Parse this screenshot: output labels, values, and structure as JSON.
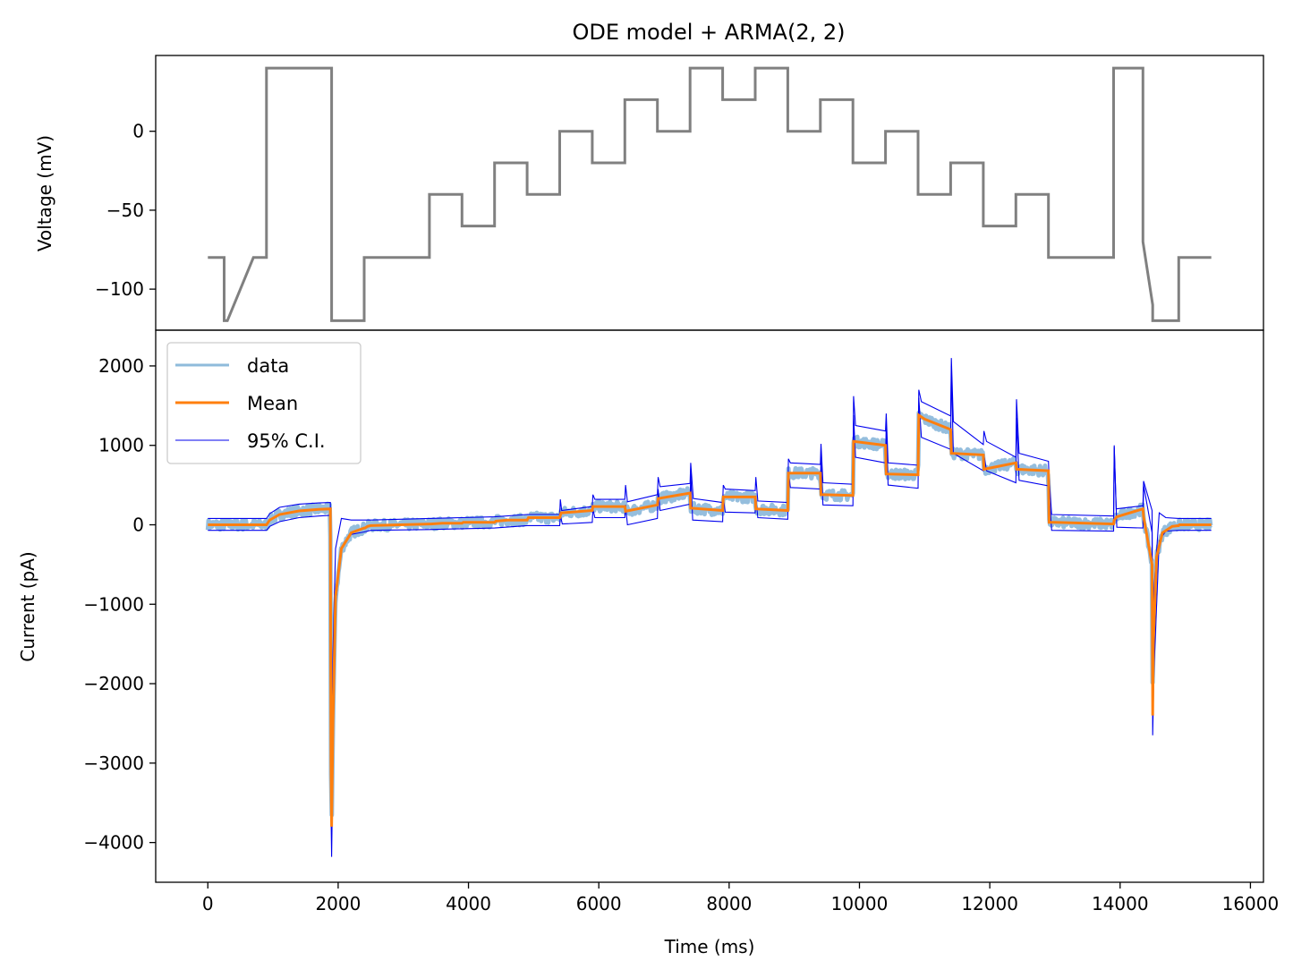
{
  "chart_data": [
    {
      "type": "line",
      "title": "ODE model + ARMA(2, 2)",
      "xlabel": "",
      "ylabel": "Voltage (mV)",
      "xlim": [
        -800,
        16200
      ],
      "ylim": [
        -126,
        48
      ],
      "yticks": [
        0,
        -50,
        -100
      ],
      "ytick_labels": [
        "0",
        "−50",
        "−100"
      ],
      "grid": false,
      "series": [
        {
          "color": "#808080",
          "x": [
            0,
            250,
            250,
            300,
            700,
            900,
            900,
            1900,
            1900,
            2400,
            2400,
            3400,
            3400,
            3900,
            3900,
            4400,
            4400,
            4900,
            4900,
            5400,
            5400,
            5900,
            5900,
            6400,
            6400,
            6900,
            6900,
            7400,
            7400,
            7900,
            7900,
            8400,
            8400,
            8900,
            8900,
            9400,
            9400,
            9900,
            9900,
            10400,
            10400,
            10900,
            10900,
            11400,
            11400,
            11900,
            11900,
            12400,
            12400,
            12900,
            12900,
            13900,
            13900,
            14350,
            14350,
            14500,
            14500,
            14900,
            14900,
            15400
          ],
          "y": [
            -80,
            -80,
            -120,
            -120,
            -80,
            -80,
            40,
            40,
            -120,
            -120,
            -80,
            -80,
            -40,
            -40,
            -60,
            -60,
            -20,
            -20,
            -40,
            -40,
            0,
            0,
            -20,
            -20,
            20,
            20,
            0,
            0,
            40,
            40,
            20,
            20,
            40,
            40,
            0,
            0,
            20,
            20,
            -20,
            -20,
            0,
            0,
            -40,
            -40,
            -20,
            -20,
            -60,
            -60,
            -40,
            -40,
            -80,
            -80,
            40,
            40,
            -70,
            -110,
            -120,
            -120,
            -80,
            -80
          ]
        }
      ]
    },
    {
      "type": "line",
      "title": "",
      "xlabel": "Time (ms)",
      "ylabel": "Current (pA)",
      "xlim": [
        -800,
        16200
      ],
      "ylim": [
        -4500,
        2450
      ],
      "xticks": [
        0,
        2000,
        4000,
        6000,
        8000,
        10000,
        12000,
        14000,
        16000
      ],
      "xtick_labels": [
        "0",
        "2000",
        "4000",
        "6000",
        "8000",
        "10000",
        "12000",
        "14000",
        "16000"
      ],
      "yticks": [
        2000,
        1000,
        0,
        -1000,
        -2000,
        -3000,
        -4000
      ],
      "ytick_labels": [
        "2000",
        "1000",
        "0",
        "−1000",
        "−2000",
        "−3000",
        "−4000"
      ],
      "legend": "upper-left",
      "grid": false,
      "series": [
        {
          "name": "data",
          "color": "#8fbbdb"
        },
        {
          "name": "Mean",
          "color": "#ff7f0e"
        },
        {
          "name": "95% C.I.",
          "color": "#0000ee"
        }
      ],
      "mean": {
        "x": [
          0,
          900,
          950,
          1100,
          1400,
          1700,
          1880,
          1890,
          1900,
          1920,
          1960,
          2050,
          2200,
          2400,
          2410,
          2450,
          2500,
          3400,
          3420,
          3600,
          3900,
          3920,
          4000,
          4400,
          4420,
          4600,
          4900,
          4920,
          5000,
          5400,
          5420,
          5900,
          5910,
          6400,
          6410,
          6900,
          6910,
          7400,
          7410,
          7900,
          7910,
          8400,
          8410,
          8900,
          8910,
          9400,
          9410,
          9900,
          9910,
          10400,
          10410,
          10900,
          10910,
          11000,
          11400,
          11410,
          11900,
          11910,
          12400,
          12410,
          12900,
          12910,
          13000,
          13900,
          13910,
          13950,
          14350,
          14360,
          14490,
          14500,
          14510,
          14560,
          14650,
          14800,
          14900,
          14910,
          15400
        ],
        "y": [
          0,
          0,
          60,
          130,
          175,
          195,
          200,
          -3000,
          -3800,
          -2500,
          -900,
          -300,
          -100,
          -40,
          -40,
          -20,
          -10,
          10,
          10,
          20,
          20,
          30,
          30,
          30,
          45,
          60,
          60,
          90,
          90,
          90,
          150,
          180,
          230,
          230,
          170,
          250,
          330,
          400,
          210,
          180,
          350,
          350,
          200,
          180,
          650,
          650,
          380,
          370,
          1050,
          1000,
          640,
          630,
          1380,
          1330,
          1200,
          900,
          880,
          700,
          780,
          700,
          680,
          30,
          30,
          10,
          60,
          100,
          200,
          100,
          -500,
          -2400,
          -1500,
          -400,
          -100,
          -20,
          -10,
          0,
          0
        ]
      },
      "upper_ci": {
        "x": [
          0,
          900,
          950,
          1100,
          1400,
          1700,
          1880,
          1890,
          1900,
          1920,
          1960,
          2050,
          2200,
          2400,
          2500,
          3400,
          3900,
          4400,
          4900,
          5400,
          5410,
          5430,
          5900,
          5910,
          5940,
          6400,
          6410,
          6440,
          6900,
          6910,
          6940,
          7400,
          7410,
          7450,
          7900,
          7910,
          7940,
          8400,
          8410,
          8440,
          8900,
          8910,
          8940,
          9400,
          9410,
          9440,
          9900,
          9910,
          9940,
          10400,
          10410,
          10440,
          10900,
          10910,
          10950,
          11400,
          11410,
          11440,
          11900,
          11910,
          11950,
          12400,
          12410,
          12450,
          12900,
          12910,
          12950,
          13900,
          13910,
          13940,
          14350,
          14360,
          14490,
          14500,
          14520,
          14600,
          14700,
          14900,
          15400
        ],
        "y": [
          80,
          80,
          140,
          220,
          260,
          275,
          280,
          -2200,
          -2800,
          -1600,
          -300,
          80,
          60,
          60,
          60,
          80,
          90,
          100,
          130,
          130,
          320,
          180,
          230,
          380,
          320,
          320,
          500,
          290,
          380,
          600,
          480,
          520,
          780,
          330,
          280,
          500,
          450,
          430,
          600,
          300,
          280,
          830,
          780,
          760,
          1020,
          530,
          510,
          1620,
          1250,
          1180,
          1400,
          780,
          750,
          1700,
          1550,
          1370,
          2100,
          1300,
          1010,
          1180,
          1050,
          850,
          1580,
          900,
          800,
          600,
          130,
          110,
          1000,
          200,
          240,
          550,
          180,
          -1600,
          -800,
          150,
          90,
          80,
          80
        ]
      },
      "lower_ci": {
        "x": [
          0,
          900,
          950,
          1100,
          1400,
          1700,
          1880,
          1890,
          1900,
          1920,
          1960,
          2050,
          2200,
          2400,
          2500,
          3400,
          3900,
          4400,
          4900,
          5400,
          5410,
          5440,
          5900,
          5910,
          5940,
          6400,
          6410,
          6440,
          6900,
          6910,
          6940,
          7400,
          7410,
          7440,
          7900,
          7910,
          7940,
          8400,
          8410,
          8440,
          8900,
          8910,
          8940,
          9400,
          9410,
          9440,
          9900,
          9910,
          9940,
          10400,
          10410,
          10440,
          10900,
          10910,
          10950,
          11400,
          11410,
          11440,
          11900,
          11910,
          11950,
          12400,
          12410,
          12450,
          12900,
          12910,
          12950,
          13900,
          13910,
          13950,
          14350,
          14360,
          14490,
          14500,
          14520,
          14600,
          14700,
          14900,
          15400
        ],
        "y": [
          -70,
          -70,
          -20,
          40,
          90,
          110,
          120,
          -3600,
          -4180,
          -2900,
          -1000,
          -300,
          -120,
          -90,
          -70,
          -60,
          -50,
          -40,
          -10,
          -10,
          120,
          10,
          30,
          200,
          90,
          90,
          250,
          0,
          80,
          450,
          180,
          260,
          650,
          60,
          40,
          350,
          160,
          150,
          350,
          90,
          70,
          670,
          470,
          450,
          860,
          250,
          240,
          1380,
          850,
          780,
          1270,
          500,
          460,
          1600,
          1100,
          950,
          2000,
          900,
          680,
          880,
          680,
          530,
          1350,
          560,
          490,
          400,
          -70,
          -80,
          980,
          -30,
          -40,
          500,
          -100,
          -2650,
          -1800,
          -200,
          -80,
          -70,
          -70
        ]
      }
    }
  ]
}
